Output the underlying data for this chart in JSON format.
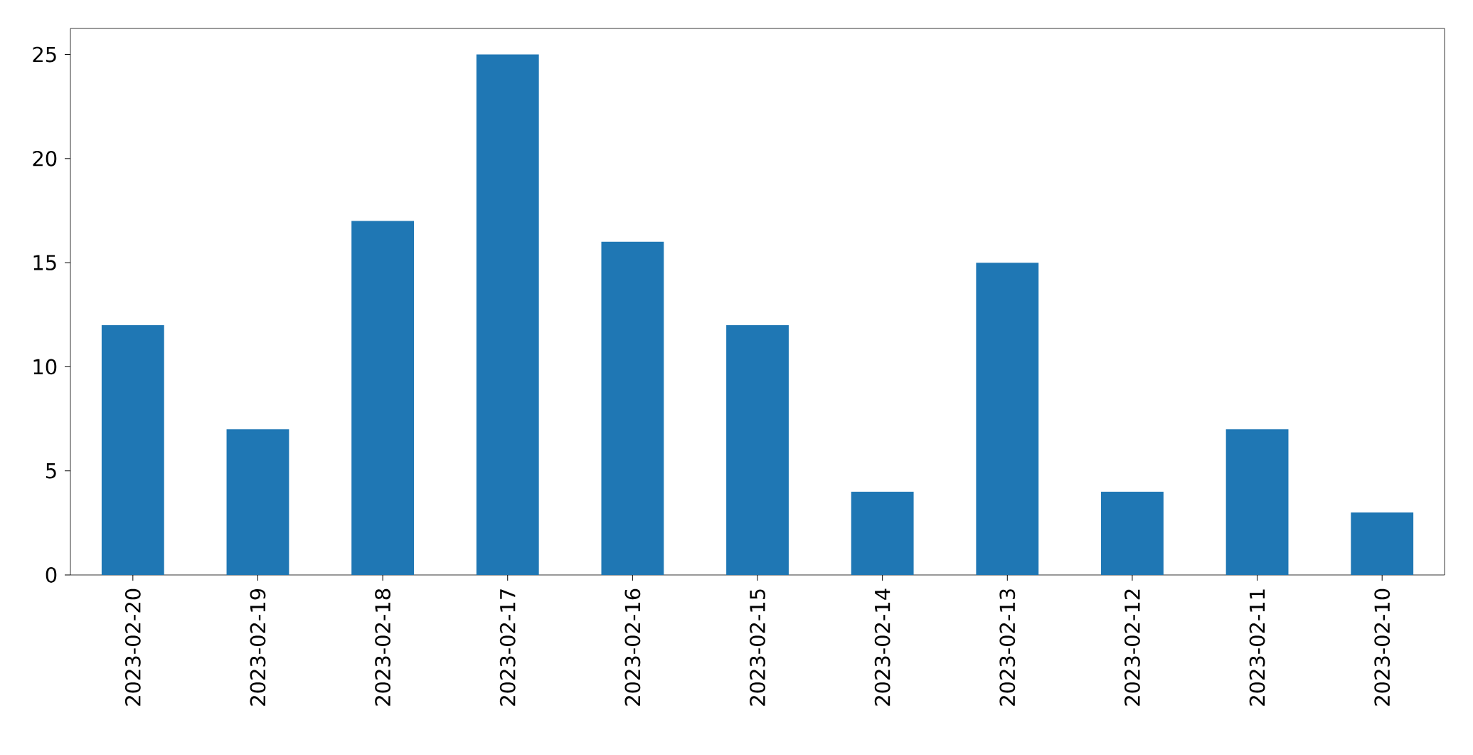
{
  "chart_data": {
    "type": "bar",
    "categories": [
      "2023-02-20",
      "2023-02-19",
      "2023-02-18",
      "2023-02-17",
      "2023-02-16",
      "2023-02-15",
      "2023-02-14",
      "2023-02-13",
      "2023-02-12",
      "2023-02-11",
      "2023-02-10"
    ],
    "values": [
      12,
      7,
      17,
      25,
      16,
      12,
      4,
      15,
      4,
      7,
      3
    ],
    "color": "#1f77b4",
    "ylim": [
      0,
      26.25
    ],
    "yticks": [
      0,
      5,
      10,
      15,
      20,
      25
    ]
  }
}
